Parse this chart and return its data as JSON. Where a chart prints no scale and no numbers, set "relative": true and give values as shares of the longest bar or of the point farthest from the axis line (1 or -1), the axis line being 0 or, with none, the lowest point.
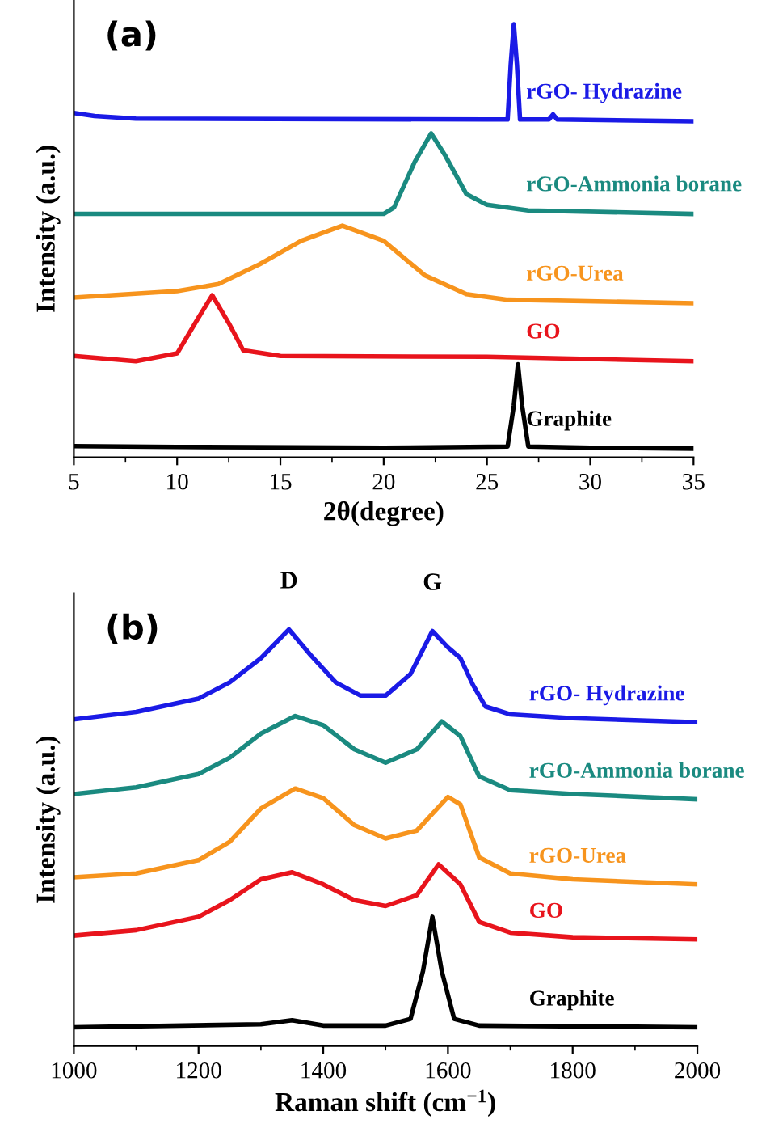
{
  "chart_data": [
    {
      "type": "line",
      "title": "(a)",
      "xlabel": "2θ(degree)",
      "ylabel": "Intensity (a.u.)",
      "relative": true,
      "xlim": [
        5,
        35
      ],
      "xticks": [
        5,
        10,
        15,
        20,
        25,
        30,
        35
      ],
      "tick_labels": "x",
      "grid": false,
      "legend": false,
      "series": [
        {
          "name": "Graphite",
          "color": "#000000",
          "x": [
            5,
            10,
            20,
            26.0,
            26.3,
            26.5,
            26.7,
            27.0,
            30,
            35
          ],
          "values": [
            0.026,
            0.024,
            0.022,
            0.025,
            0.12,
            0.215,
            0.12,
            0.025,
            0.022,
            0.02
          ]
        },
        {
          "name": "GO",
          "color": "#e8141c",
          "x": [
            5,
            8,
            10,
            11,
            11.7,
            12.5,
            13.2,
            15,
            25,
            35
          ],
          "values": [
            0.234,
            0.222,
            0.24,
            0.32,
            0.374,
            0.31,
            0.247,
            0.234,
            0.232,
            0.222
          ]
        },
        {
          "name": "rGO-Urea",
          "color": "#f7941d",
          "x": [
            5,
            10,
            12,
            14,
            16,
            18,
            20,
            22,
            24,
            26,
            35
          ],
          "values": [
            0.369,
            0.384,
            0.4,
            0.446,
            0.5,
            0.535,
            0.5,
            0.42,
            0.377,
            0.364,
            0.356
          ]
        },
        {
          "name": "rGO-Ammonia borane",
          "color": "#1a8a80",
          "x": [
            5,
            20,
            20.5,
            21.5,
            22.3,
            23,
            24,
            25,
            27,
            35
          ],
          "values": [
            0.562,
            0.562,
            0.577,
            0.682,
            0.748,
            0.695,
            0.608,
            0.583,
            0.57,
            0.562
          ]
        },
        {
          "name": "rGO- Hydrazine",
          "color": "#1a1ae6",
          "x": [
            5,
            6,
            8,
            25,
            26.0,
            26.15,
            26.3,
            26.45,
            26.6,
            28,
            28.2,
            28.4,
            35
          ],
          "values": [
            0.795,
            0.788,
            0.782,
            0.78,
            0.78,
            0.907,
            1.0,
            0.907,
            0.78,
            0.78,
            0.792,
            0.78,
            0.776
          ]
        }
      ]
    },
    {
      "type": "line",
      "title": "(b)",
      "xlabel": "Raman shift (cm$^{−1}$)",
      "ylabel": "Intensity (a.u.)",
      "relative": true,
      "xlim": [
        1000,
        2000
      ],
      "xticks": [
        1000,
        1200,
        1400,
        1600,
        1800,
        2000
      ],
      "tick_labels": "x",
      "grid": false,
      "legend": false,
      "annotations": [
        {
          "text": "D",
          "x": 1345,
          "y": 1.0
        },
        {
          "text": "G",
          "x": 1575,
          "y": 0.996
        }
      ],
      "series": [
        {
          "name": "Graphite",
          "color": "#000000",
          "x": [
            1000,
            1300,
            1350,
            1400,
            1500,
            1540,
            1560,
            1575,
            1590,
            1610,
            1650,
            2000
          ],
          "values": [
            0.045,
            0.052,
            0.062,
            0.049,
            0.049,
            0.065,
            0.18,
            0.31,
            0.18,
            0.065,
            0.049,
            0.045
          ]
        },
        {
          "name": "GO",
          "color": "#e8141c",
          "x": [
            1000,
            1100,
            1200,
            1250,
            1300,
            1350,
            1400,
            1450,
            1500,
            1550,
            1585,
            1620,
            1650,
            1700,
            1800,
            2000
          ],
          "values": [
            0.265,
            0.278,
            0.31,
            0.35,
            0.4,
            0.417,
            0.388,
            0.35,
            0.336,
            0.362,
            0.436,
            0.388,
            0.298,
            0.272,
            0.261,
            0.256
          ]
        },
        {
          "name": "rGO-Urea",
          "color": "#f7941d",
          "x": [
            1000,
            1100,
            1200,
            1250,
            1300,
            1355,
            1400,
            1450,
            1500,
            1550,
            1600,
            1620,
            1650,
            1700,
            1800,
            2000
          ],
          "values": [
            0.405,
            0.414,
            0.446,
            0.49,
            0.57,
            0.618,
            0.595,
            0.53,
            0.498,
            0.517,
            0.598,
            0.58,
            0.453,
            0.414,
            0.4,
            0.388
          ]
        },
        {
          "name": "rGO-Ammonia borane",
          "color": "#1a8a80",
          "x": [
            1000,
            1100,
            1200,
            1250,
            1300,
            1355,
            1400,
            1450,
            1500,
            1550,
            1590,
            1620,
            1650,
            1700,
            1800,
            2000
          ],
          "values": [
            0.605,
            0.621,
            0.653,
            0.692,
            0.75,
            0.792,
            0.77,
            0.712,
            0.68,
            0.712,
            0.779,
            0.744,
            0.647,
            0.614,
            0.605,
            0.592
          ]
        },
        {
          "name": "rGO- Hydrazine",
          "color": "#1a1ae6",
          "x": [
            1000,
            1100,
            1200,
            1250,
            1300,
            1345,
            1380,
            1420,
            1460,
            1500,
            1540,
            1575,
            1600,
            1620,
            1640,
            1660,
            1700,
            1800,
            2000
          ],
          "values": [
            0.784,
            0.802,
            0.834,
            0.873,
            0.931,
            1.0,
            0.938,
            0.873,
            0.841,
            0.841,
            0.893,
            0.996,
            0.957,
            0.931,
            0.867,
            0.815,
            0.796,
            0.787,
            0.777
          ]
        }
      ]
    }
  ]
}
